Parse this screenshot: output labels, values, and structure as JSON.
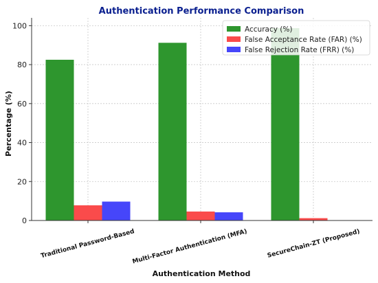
{
  "chart_data": {
    "type": "bar",
    "title": "Authentication Performance Comparison",
    "xlabel": "Authentication Method",
    "ylabel": "Percentage (%)",
    "categories": [
      "Traditional Password-Based",
      "Multi-Factor Authentication (MFA)",
      "SecureChain-ZT (Proposed)"
    ],
    "series": [
      {
        "name": "Accuracy (%)",
        "values": [
          82.5,
          91.2,
          98.7
        ],
        "color": "#2e962e"
      },
      {
        "name": "False Acceptance Rate (FAR) (%)",
        "values": [
          7.8,
          4.6,
          1.2
        ],
        "color": "#fa4b4b"
      },
      {
        "name": "False Rejection Rate (FRR) (%)",
        "values": [
          9.7,
          4.2,
          0.1
        ],
        "color": "#4646fa"
      }
    ],
    "ylim": [
      0,
      104
    ],
    "yticks": [
      0,
      20,
      40,
      60,
      80,
      100
    ],
    "grid": true,
    "legend_position": "top-right"
  }
}
